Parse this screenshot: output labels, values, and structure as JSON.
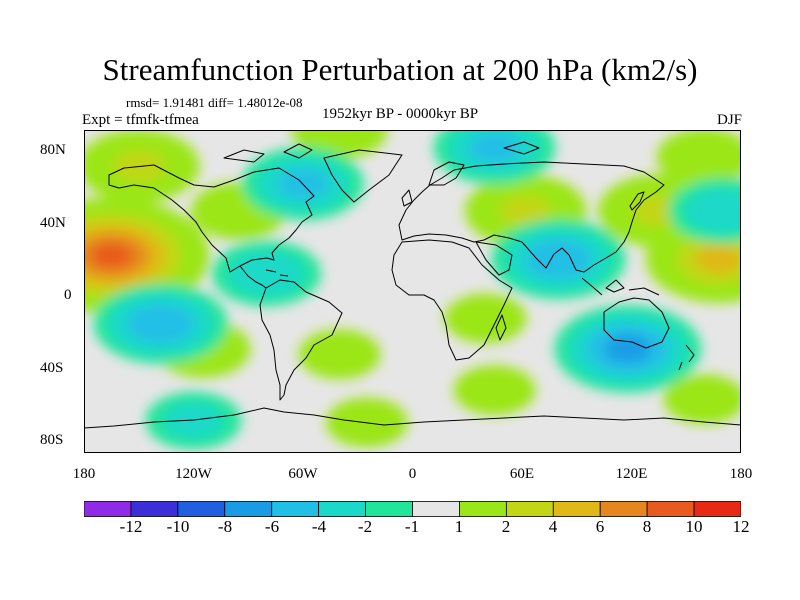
{
  "figure": {
    "title": "Streamfunction Perturbation at 200 hPa (km2/s)",
    "stats": "rmsd= 1.91481 diff= 1.48012e-08",
    "expt": "Expt = tfmfk-tfmea",
    "period": "1952kyr BP - 0000kyr BP",
    "season": "DJF"
  },
  "axes": {
    "y_labels": [
      "80N",
      "40N",
      "0",
      "40S",
      "80S"
    ],
    "x_labels": [
      "180",
      "120W",
      "60W",
      "0",
      "60E",
      "120E",
      "180"
    ]
  },
  "colorbar": {
    "labels": [
      "-12",
      "-10",
      "-8",
      "-6",
      "-4",
      "-2",
      "-1",
      "1",
      "2",
      "4",
      "6",
      "8",
      "10",
      "12"
    ],
    "colors": [
      "#8f2be6",
      "#3b2fd8",
      "#1f5fe0",
      "#1a9be6",
      "#20bfe6",
      "#1ad9c8",
      "#20e59a",
      "#e6e6e6",
      "#9be619",
      "#c3d616",
      "#e0b818",
      "#e6861e",
      "#e85a1e",
      "#e82a14"
    ]
  },
  "chart_data": {
    "type": "heatmap",
    "title": "Streamfunction Perturbation at 200 hPa (km2/s)",
    "xlabel": "",
    "ylabel": "",
    "x_range": [
      -180,
      180
    ],
    "y_range": [
      -90,
      90
    ],
    "contour_levels": [
      -12,
      -10,
      -8,
      -6,
      -4,
      -2,
      -1,
      1,
      2,
      4,
      6,
      8,
      10,
      12
    ],
    "anomalies": [
      {
        "lon": -165,
        "lat": 20,
        "value": 11
      },
      {
        "lon": 168,
        "lat": 18,
        "value": 7
      },
      {
        "lon": 135,
        "lat": 45,
        "value": 5
      },
      {
        "lon": 62,
        "lat": 45,
        "value": 5
      },
      {
        "lon": -150,
        "lat": 70,
        "value": 5
      },
      {
        "lon": -40,
        "lat": 90,
        "value": 3
      },
      {
        "lon": 160,
        "lat": 75,
        "value": 3
      },
      {
        "lon": -95,
        "lat": 45,
        "value": 3
      },
      {
        "lon": -115,
        "lat": -32,
        "value": 3
      },
      {
        "lon": -40,
        "lat": -35,
        "value": 2
      },
      {
        "lon": 40,
        "lat": -15,
        "value": 2
      },
      {
        "lon": -25,
        "lat": -73,
        "value": 2
      },
      {
        "lon": 45,
        "lat": -55,
        "value": 2
      },
      {
        "lon": 160,
        "lat": -60,
        "value": 2
      },
      {
        "lon": -138,
        "lat": -18,
        "value": -6
      },
      {
        "lon": 80,
        "lat": 18,
        "value": -6
      },
      {
        "lon": 118,
        "lat": -32,
        "value": -7
      },
      {
        "lon": -60,
        "lat": 60,
        "value": -5
      },
      {
        "lon": 45,
        "lat": 80,
        "value": -5
      },
      {
        "lon": 170,
        "lat": 45,
        "value": -4
      },
      {
        "lon": -80,
        "lat": 10,
        "value": -4
      },
      {
        "lon": -120,
        "lat": -72,
        "value": -3
      }
    ]
  }
}
